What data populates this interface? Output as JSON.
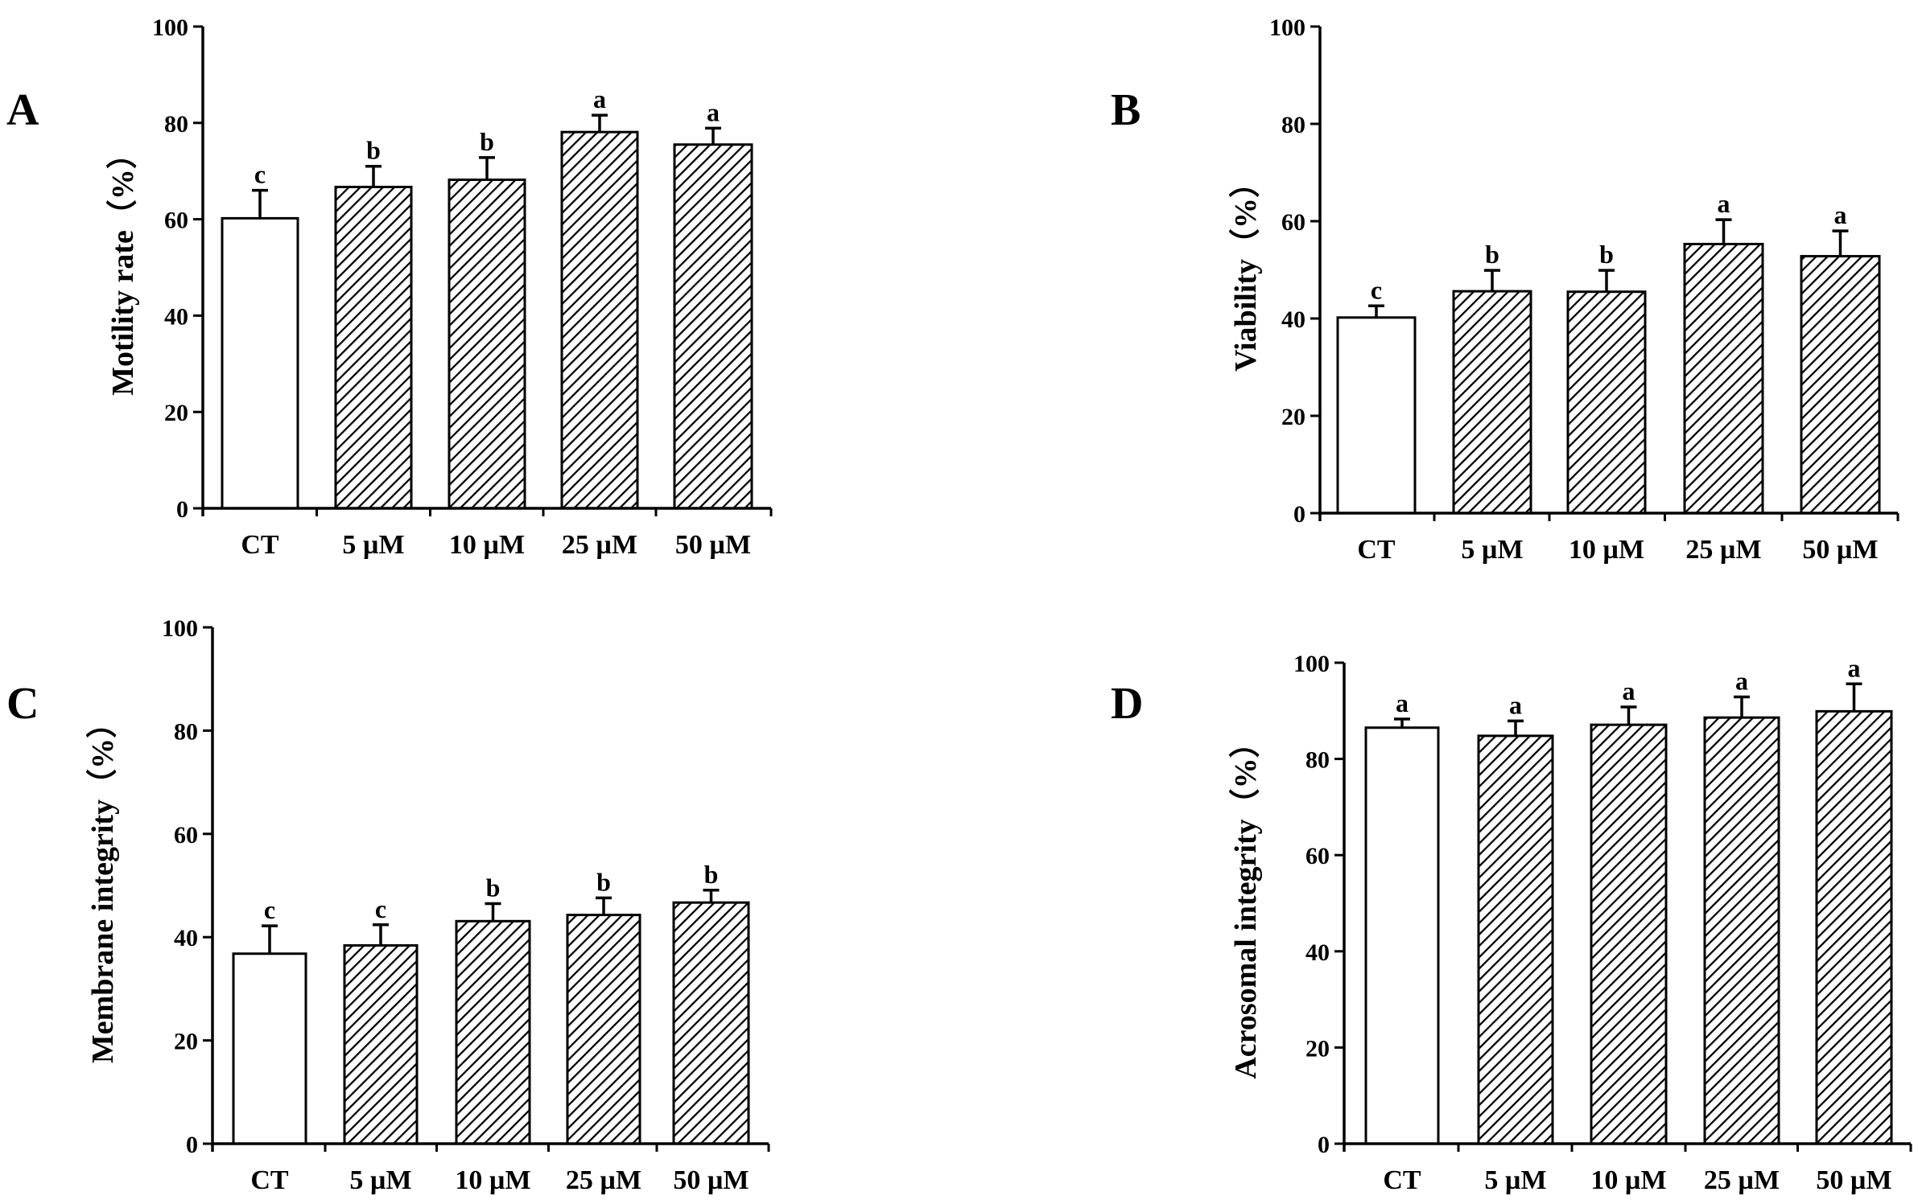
{
  "colors": {
    "ink": "#000000",
    "control_fill": "#ffffff",
    "treated_fill": "hatched"
  },
  "chart_data": [
    {
      "panel": "A",
      "type": "bar",
      "ylabel": "Motility rate（%）",
      "categories": [
        "CT",
        "5 µM",
        "10 µM",
        "25 µM",
        "50 µM"
      ],
      "values": [
        60.2,
        66.7,
        68.2,
        78.1,
        75.5
      ],
      "errors": [
        5.8,
        4.3,
        4.6,
        3.5,
        3.4
      ],
      "letters": [
        "c",
        "b",
        "b",
        "a",
        "a"
      ],
      "ylim": [
        0,
        100
      ],
      "yticks": [
        0,
        20,
        40,
        60,
        80,
        100
      ]
    },
    {
      "panel": "B",
      "type": "bar",
      "ylabel": "Viability（%）",
      "categories": [
        "CT",
        "5 µM",
        "10 µM",
        "25 µM",
        "50 µM"
      ],
      "values": [
        40.2,
        45.6,
        45.5,
        55.3,
        52.8
      ],
      "errors": [
        2.4,
        4.3,
        4.4,
        5.0,
        5.2
      ],
      "letters": [
        "c",
        "b",
        "b",
        "a",
        "a"
      ],
      "ylim": [
        0,
        100
      ],
      "yticks": [
        0,
        20,
        40,
        60,
        80,
        100
      ]
    },
    {
      "panel": "C",
      "type": "bar",
      "ylabel": "Membrane integrity（%）",
      "categories": [
        "CT",
        "5 µM",
        "10 µM",
        "25 µM",
        "50 µM"
      ],
      "values": [
        36.8,
        38.4,
        43.1,
        44.3,
        46.7
      ],
      "errors": [
        5.4,
        4.0,
        3.4,
        3.3,
        2.4
      ],
      "letters": [
        "c",
        "c",
        "b",
        "b",
        "b"
      ],
      "ylim": [
        0,
        100
      ],
      "yticks": [
        0,
        20,
        40,
        60,
        80,
        100
      ]
    },
    {
      "panel": "D",
      "type": "bar",
      "ylabel": "Acrosomal integrity（%）",
      "categories": [
        "CT",
        "5 µM",
        "10 µM",
        "25 µM",
        "50 µM"
      ],
      "values": [
        86.5,
        84.8,
        87.1,
        88.6,
        89.9
      ],
      "errors": [
        1.8,
        3.1,
        3.7,
        4.3,
        5.7
      ],
      "letters": [
        "a",
        "a",
        "a",
        "a",
        "a"
      ],
      "ylim": [
        0,
        100
      ],
      "yticks": [
        0,
        20,
        40,
        60,
        80,
        100
      ]
    }
  ]
}
